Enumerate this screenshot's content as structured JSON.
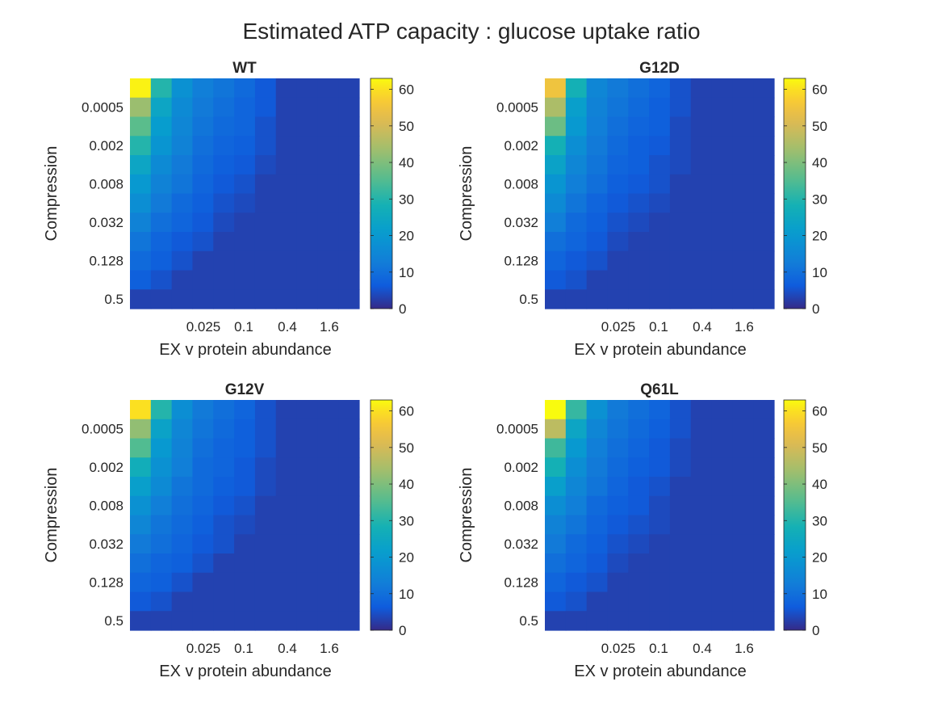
{
  "figure": {
    "title": "Estimated ATP capacity : glucose uptake ratio"
  },
  "colors": {
    "background": "#ffffff",
    "axis": "#262626",
    "colormap": "parula"
  },
  "chart_data": [
    {
      "type": "heatmap",
      "title": "WT",
      "xlabel": "EX v protein abundance",
      "ylabel": "Compression",
      "x_ticks": [
        "0.025",
        "0.1",
        "0.4",
        "1.6"
      ],
      "y_ticks": [
        "0.0005",
        "0.002",
        "0.008",
        "0.032",
        "0.128",
        "0.5"
      ],
      "colorbar": {
        "ticks": [
          0,
          10,
          20,
          30,
          40,
          50,
          60
        ],
        "clim": [
          0,
          63
        ]
      },
      "values": [
        [
          62,
          30,
          18,
          13,
          11,
          9,
          6,
          3,
          3,
          3,
          3
        ],
        [
          43,
          24,
          16,
          12,
          10,
          8,
          6,
          3,
          3,
          3,
          3
        ],
        [
          36,
          21,
          15,
          11,
          9,
          8,
          5,
          3,
          3,
          3,
          3
        ],
        [
          30,
          19,
          14,
          10,
          8,
          7,
          5,
          3,
          3,
          3,
          3
        ],
        [
          24,
          16,
          12,
          9,
          7,
          6,
          4,
          3,
          3,
          3,
          3
        ],
        [
          20,
          14,
          11,
          8,
          6,
          5,
          3,
          3,
          3,
          3,
          3
        ],
        [
          17,
          12,
          9,
          7,
          5,
          4,
          3,
          3,
          3,
          3,
          3
        ],
        [
          14,
          10,
          8,
          6,
          4,
          3,
          3,
          3,
          3,
          3,
          3
        ],
        [
          11,
          8,
          6,
          5,
          3,
          3,
          3,
          3,
          3,
          3,
          3
        ],
        [
          9,
          7,
          5,
          3,
          3,
          3,
          3,
          3,
          3,
          3,
          3
        ],
        [
          7,
          5,
          3,
          3,
          3,
          3,
          3,
          3,
          3,
          3,
          3
        ],
        [
          3,
          3,
          3,
          3,
          3,
          3,
          3,
          3,
          3,
          3,
          3
        ]
      ]
    },
    {
      "type": "heatmap",
      "title": "G12D",
      "xlabel": "EX v protein abundance",
      "ylabel": "Compression",
      "x_ticks": [
        "0.025",
        "0.1",
        "0.4",
        "1.6"
      ],
      "y_ticks": [
        "0.0005",
        "0.002",
        "0.008",
        "0.032",
        "0.128",
        "0.5"
      ],
      "colorbar": {
        "ticks": [
          0,
          10,
          20,
          30,
          40,
          50,
          60
        ],
        "clim": [
          0,
          63
        ]
      },
      "values": [
        [
          55,
          28,
          15,
          12,
          10,
          8,
          5,
          3,
          3,
          3,
          3
        ],
        [
          45,
          22,
          14,
          11,
          9,
          7,
          5,
          3,
          3,
          3,
          3
        ],
        [
          38,
          20,
          13,
          10,
          8,
          7,
          4,
          3,
          3,
          3,
          3
        ],
        [
          28,
          17,
          12,
          9,
          7,
          6,
          4,
          3,
          3,
          3,
          3
        ],
        [
          23,
          15,
          11,
          8,
          7,
          5,
          4,
          3,
          3,
          3,
          3
        ],
        [
          19,
          13,
          10,
          7,
          6,
          5,
          3,
          3,
          3,
          3,
          3
        ],
        [
          16,
          11,
          8,
          6,
          5,
          4,
          3,
          3,
          3,
          3,
          3
        ],
        [
          13,
          9,
          7,
          5,
          4,
          3,
          3,
          3,
          3,
          3,
          3
        ],
        [
          10,
          8,
          6,
          4,
          3,
          3,
          3,
          3,
          3,
          3,
          3
        ],
        [
          8,
          6,
          5,
          3,
          3,
          3,
          3,
          3,
          3,
          3,
          3
        ],
        [
          6,
          5,
          3,
          3,
          3,
          3,
          3,
          3,
          3,
          3,
          3
        ],
        [
          3,
          3,
          3,
          3,
          3,
          3,
          3,
          3,
          3,
          3,
          3
        ]
      ]
    },
    {
      "type": "heatmap",
      "title": "G12V",
      "xlabel": "EX v protein abundance",
      "ylabel": "Compression",
      "x_ticks": [
        "0.025",
        "0.1",
        "0.4",
        "1.6"
      ],
      "y_ticks": [
        "0.0005",
        "0.002",
        "0.008",
        "0.032",
        "0.128",
        "0.5"
      ],
      "colorbar": {
        "ticks": [
          0,
          10,
          20,
          30,
          40,
          50,
          60
        ],
        "clim": [
          0,
          63
        ]
      },
      "values": [
        [
          60,
          30,
          17,
          12,
          10,
          8,
          5,
          3,
          3,
          3,
          3
        ],
        [
          42,
          23,
          15,
          11,
          9,
          7,
          5,
          3,
          3,
          3,
          3
        ],
        [
          35,
          20,
          14,
          10,
          8,
          7,
          5,
          3,
          3,
          3,
          3
        ],
        [
          27,
          18,
          13,
          9,
          8,
          6,
          4,
          3,
          3,
          3,
          3
        ],
        [
          22,
          16,
          11,
          9,
          7,
          6,
          4,
          3,
          3,
          3,
          3
        ],
        [
          18,
          13,
          10,
          8,
          6,
          5,
          3,
          3,
          3,
          3,
          3
        ],
        [
          15,
          11,
          9,
          7,
          5,
          4,
          3,
          3,
          3,
          3,
          3
        ],
        [
          12,
          10,
          8,
          6,
          5,
          3,
          3,
          3,
          3,
          3,
          3
        ],
        [
          10,
          8,
          7,
          5,
          3,
          3,
          3,
          3,
          3,
          3,
          3
        ],
        [
          8,
          7,
          5,
          3,
          3,
          3,
          3,
          3,
          3,
          3,
          3
        ],
        [
          6,
          5,
          3,
          3,
          3,
          3,
          3,
          3,
          3,
          3,
          3
        ],
        [
          3,
          3,
          3,
          3,
          3,
          3,
          3,
          3,
          3,
          3,
          3
        ]
      ]
    },
    {
      "type": "heatmap",
      "title": "Q61L",
      "xlabel": "EX v protein abundance",
      "ylabel": "Compression",
      "x_ticks": [
        "0.025",
        "0.1",
        "0.4",
        "1.6"
      ],
      "y_ticks": [
        "0.0005",
        "0.002",
        "0.008",
        "0.032",
        "0.128",
        "0.5"
      ],
      "colorbar": {
        "ticks": [
          0,
          10,
          20,
          30,
          40,
          50,
          60
        ],
        "clim": [
          0,
          63
        ]
      },
      "values": [
        [
          63,
          32,
          18,
          12,
          10,
          8,
          5,
          3,
          3,
          3,
          3
        ],
        [
          47,
          24,
          15,
          11,
          9,
          7,
          5,
          3,
          3,
          3,
          3
        ],
        [
          33,
          20,
          13,
          10,
          8,
          6,
          4,
          3,
          3,
          3,
          3
        ],
        [
          28,
          17,
          12,
          9,
          7,
          6,
          4,
          3,
          3,
          3,
          3
        ],
        [
          22,
          15,
          11,
          8,
          6,
          5,
          3,
          3,
          3,
          3,
          3
        ],
        [
          17,
          13,
          9,
          7,
          6,
          4,
          3,
          3,
          3,
          3,
          3
        ],
        [
          14,
          11,
          8,
          6,
          5,
          4,
          3,
          3,
          3,
          3,
          3
        ],
        [
          12,
          9,
          7,
          5,
          4,
          3,
          3,
          3,
          3,
          3,
          3
        ],
        [
          10,
          8,
          6,
          4,
          3,
          3,
          3,
          3,
          3,
          3,
          3
        ],
        [
          8,
          6,
          5,
          3,
          3,
          3,
          3,
          3,
          3,
          3,
          3
        ],
        [
          6,
          5,
          3,
          3,
          3,
          3,
          3,
          3,
          3,
          3,
          3
        ],
        [
          3,
          3,
          3,
          3,
          3,
          3,
          3,
          3,
          3,
          3,
          3
        ]
      ]
    }
  ]
}
